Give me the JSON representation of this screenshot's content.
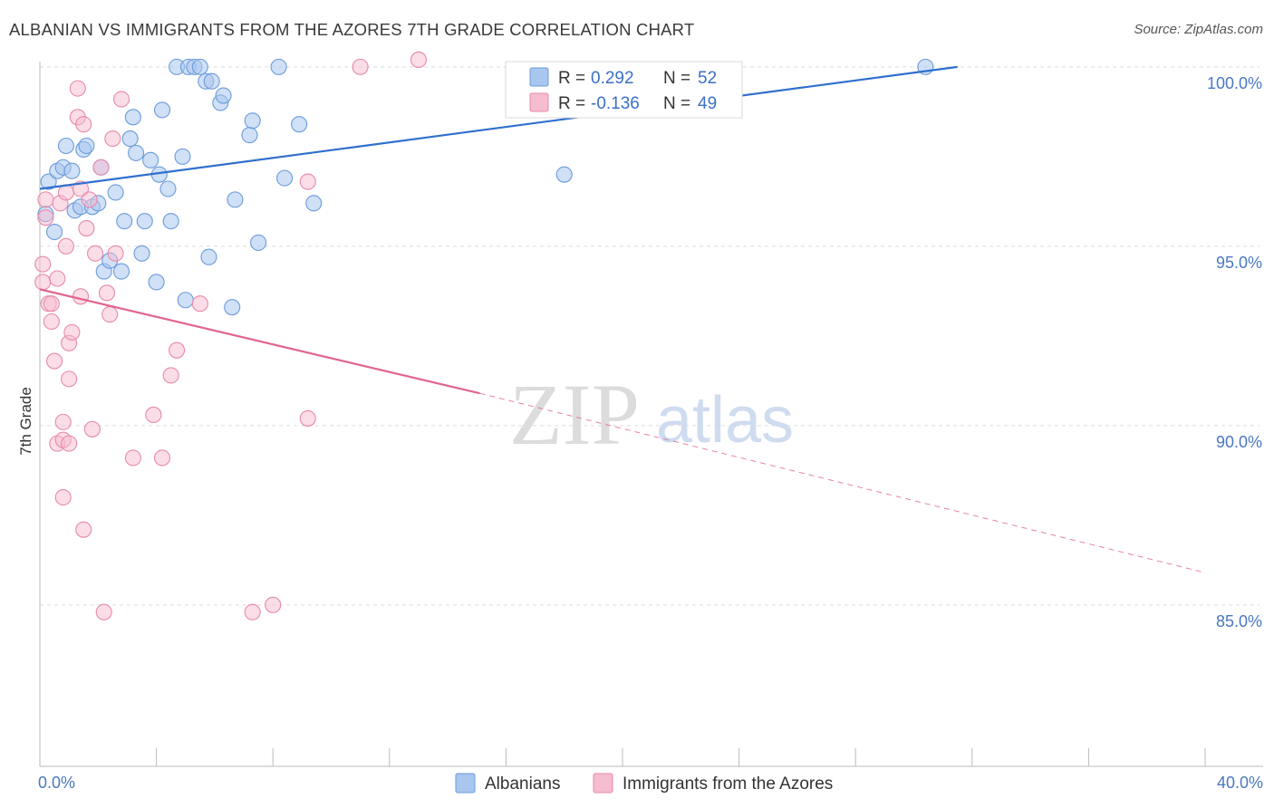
{
  "chart_data": {
    "type": "scatter",
    "title": "ALBANIAN VS IMMIGRANTS FROM THE AZORES 7TH GRADE CORRELATION CHART",
    "source": "Source: ZipAtlas.com",
    "ylabel": "7th Grade",
    "xlabel": "",
    "xlim": [
      0,
      40
    ],
    "ylim": [
      80.5,
      100.3
    ],
    "x_tick_labels": [
      "0.0%",
      "40.0%"
    ],
    "y_ticks": [
      {
        "value": 100,
        "label": "100.0%"
      },
      {
        "value": 95,
        "label": "95.0%"
      },
      {
        "value": 90,
        "label": "90.0%"
      },
      {
        "value": 85,
        "label": "85.0%"
      }
    ],
    "watermark": {
      "zip": "ZIP",
      "atlas": "atlas"
    },
    "legend": [
      {
        "r_label": "R =",
        "r_value": "0.292",
        "n_label": "N =",
        "n_value": "52"
      },
      {
        "r_label": "R =",
        "r_value": "-0.136",
        "n_label": "N =",
        "n_value": "49"
      }
    ],
    "colors": {
      "blue_fill": "#a9c6ee",
      "blue_stroke": "#6a9bdc",
      "blue_line": "#2f6fce",
      "pink_fill": "#f6bcd0",
      "pink_stroke": "#e889aa",
      "pink_line": "#e0648f",
      "grid": "#dddddd",
      "tick": "#4a78c2"
    },
    "series": [
      {
        "name": "Albanians",
        "trend": {
          "x0": 0,
          "y0": 96.6,
          "x1": 31.5,
          "y1": 100.0
        },
        "points": [
          [
            0.2,
            95.9
          ],
          [
            0.3,
            96.8
          ],
          [
            0.5,
            95.4
          ],
          [
            0.6,
            97.1
          ],
          [
            0.8,
            97.2
          ],
          [
            0.9,
            97.8
          ],
          [
            1.1,
            97.1
          ],
          [
            1.2,
            96.0
          ],
          [
            1.4,
            96.1
          ],
          [
            1.5,
            97.7
          ],
          [
            1.6,
            97.8
          ],
          [
            1.8,
            96.1
          ],
          [
            2.0,
            96.2
          ],
          [
            2.1,
            97.2
          ],
          [
            2.2,
            94.3
          ],
          [
            2.4,
            94.6
          ],
          [
            2.6,
            96.5
          ],
          [
            2.8,
            94.3
          ],
          [
            2.9,
            95.7
          ],
          [
            3.1,
            98.0
          ],
          [
            3.2,
            98.6
          ],
          [
            3.3,
            97.6
          ],
          [
            3.5,
            94.8
          ],
          [
            3.6,
            95.7
          ],
          [
            3.8,
            97.4
          ],
          [
            4.0,
            94.0
          ],
          [
            4.1,
            97.0
          ],
          [
            4.2,
            98.8
          ],
          [
            4.4,
            96.6
          ],
          [
            4.5,
            95.7
          ],
          [
            4.7,
            100.0
          ],
          [
            4.9,
            97.5
          ],
          [
            5.0,
            93.5
          ],
          [
            5.1,
            100.0
          ],
          [
            5.3,
            100.0
          ],
          [
            5.5,
            100.0
          ],
          [
            5.7,
            99.6
          ],
          [
            5.8,
            94.7
          ],
          [
            5.9,
            99.6
          ],
          [
            6.2,
            99.0
          ],
          [
            6.3,
            99.2
          ],
          [
            6.6,
            93.3
          ],
          [
            6.7,
            96.3
          ],
          [
            7.2,
            98.1
          ],
          [
            7.3,
            98.5
          ],
          [
            7.5,
            95.1
          ],
          [
            8.2,
            100.0
          ],
          [
            8.4,
            96.9
          ],
          [
            8.9,
            98.4
          ],
          [
            9.4,
            96.2
          ],
          [
            18.0,
            97.0
          ],
          [
            30.4,
            100.0
          ]
        ]
      },
      {
        "name": "Immigrants from the Azores",
        "trend": {
          "x0": 0,
          "y0": 93.8,
          "x1": 15.1,
          "y1": 90.9
        },
        "trend_dashed": {
          "x0": 15.1,
          "y0": 90.9,
          "x1": 40,
          "y1": 85.9
        },
        "points": [
          [
            0.1,
            94.5
          ],
          [
            0.1,
            94.0
          ],
          [
            0.2,
            95.8
          ],
          [
            0.2,
            96.3
          ],
          [
            0.3,
            93.4
          ],
          [
            0.4,
            92.9
          ],
          [
            0.4,
            93.4
          ],
          [
            0.5,
            91.8
          ],
          [
            0.6,
            94.1
          ],
          [
            0.6,
            89.5
          ],
          [
            0.7,
            96.2
          ],
          [
            0.8,
            90.1
          ],
          [
            0.8,
            89.6
          ],
          [
            0.8,
            88.0
          ],
          [
            0.9,
            95.0
          ],
          [
            0.9,
            96.5
          ],
          [
            1.0,
            91.3
          ],
          [
            1.0,
            92.3
          ],
          [
            1.1,
            92.6
          ],
          [
            1.3,
            98.6
          ],
          [
            1.3,
            99.4
          ],
          [
            1.4,
            93.6
          ],
          [
            1.4,
            96.6
          ],
          [
            1.5,
            87.1
          ],
          [
            1.5,
            98.4
          ],
          [
            1.6,
            95.5
          ],
          [
            1.7,
            96.3
          ],
          [
            1.8,
            89.9
          ],
          [
            1.9,
            94.8
          ],
          [
            2.1,
            97.2
          ],
          [
            2.2,
            84.8
          ],
          [
            2.3,
            93.7
          ],
          [
            2.4,
            93.1
          ],
          [
            2.5,
            98.0
          ],
          [
            2.6,
            94.8
          ],
          [
            2.8,
            99.1
          ],
          [
            3.2,
            89.1
          ],
          [
            3.9,
            90.3
          ],
          [
            4.2,
            89.1
          ],
          [
            4.5,
            91.4
          ],
          [
            4.7,
            92.1
          ],
          [
            5.5,
            93.4
          ],
          [
            7.3,
            84.8
          ],
          [
            8.0,
            85.0
          ],
          [
            9.2,
            96.8
          ],
          [
            9.2,
            90.2
          ],
          [
            11.0,
            100.0
          ],
          [
            13.0,
            100.2
          ],
          [
            1.0,
            89.5
          ]
        ]
      }
    ]
  }
}
